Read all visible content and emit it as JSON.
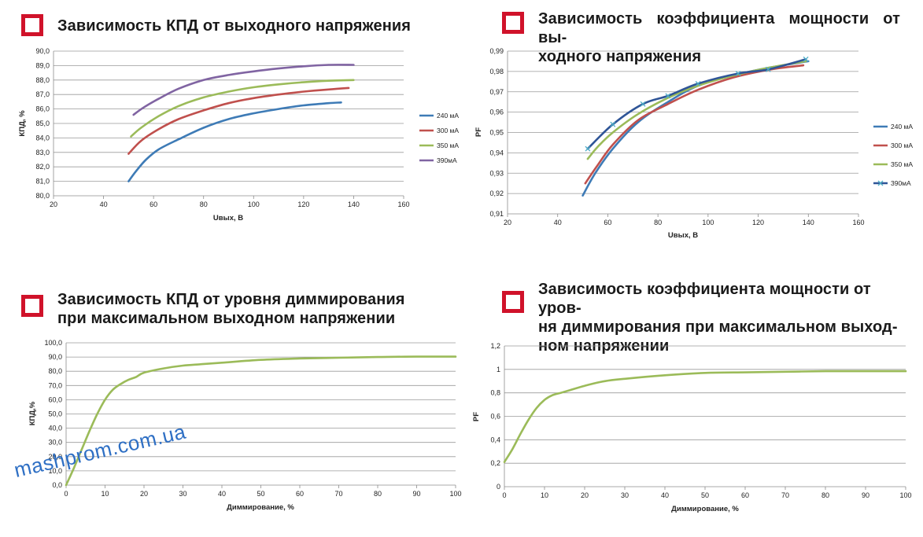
{
  "panels": [
    {
      "title": "Зависимость КПД от выходного напряжения"
    },
    {
      "title": "Зависимость коэффициента мощности от вы-ходного напряжения"
    },
    {
      "title": "Зависимость КПД от уровня диммирования при максимальном выходном напряжении"
    },
    {
      "title": "Зависимость коэффициента мощности от уров-ня диммирования при максимальном выход-ном напряжении"
    }
  ],
  "titles_lines": [
    [
      "Зависимость КПД от выходного напряжения"
    ],
    [
      "Зависимость коэффициента мощности от вы-",
      "ходного напряжения"
    ],
    [
      "Зависимость КПД от уровня диммирования",
      "при максимальном выходном напряжении"
    ],
    [
      "Зависимость коэффициента мощности от уров-",
      "ня диммирования при максимальном выход-",
      "ном напряжении"
    ]
  ],
  "watermark": "mashprom.com.ua",
  "chart_data": [
    {
      "type": "line",
      "title": "Зависимость КПД от выходного напряжения",
      "xlabel": "Uвых, В",
      "ylabel": "КПД, %",
      "xlim": [
        20,
        160
      ],
      "ylim": [
        80,
        90
      ],
      "xticks": [
        "20",
        "40",
        "60",
        "80",
        "100",
        "120",
        "140",
        "160"
      ],
      "yticks": [
        "80,0",
        "81,0",
        "82,0",
        "83,0",
        "84,0",
        "85,0",
        "86,0",
        "87,0",
        "88,0",
        "89,0",
        "90,0"
      ],
      "grid": true,
      "legend": "right",
      "series": [
        {
          "name": "240 мА",
          "color": "#3e7bb6",
          "x": [
            50,
            53,
            57,
            62,
            70,
            80,
            90,
            100,
            110,
            120,
            130,
            135
          ],
          "y": [
            81.0,
            81.7,
            82.5,
            83.2,
            83.9,
            84.7,
            85.3,
            85.7,
            86.0,
            86.25,
            86.4,
            86.45
          ]
        },
        {
          "name": "300 мА",
          "color": "#c0504d",
          "x": [
            50,
            55,
            62,
            70,
            80,
            90,
            100,
            110,
            120,
            130,
            138
          ],
          "y": [
            82.9,
            83.8,
            84.6,
            85.3,
            85.9,
            86.4,
            86.75,
            87.0,
            87.2,
            87.35,
            87.45
          ]
        },
        {
          "name": "350 мА",
          "color": "#9bbb59",
          "x": [
            51,
            55,
            62,
            70,
            80,
            90,
            100,
            110,
            120,
            130,
            140
          ],
          "y": [
            84.1,
            84.7,
            85.5,
            86.2,
            86.8,
            87.2,
            87.5,
            87.7,
            87.85,
            87.95,
            88.0
          ]
        },
        {
          "name": "390мА",
          "color": "#8064a2",
          "x": [
            52,
            56,
            62,
            70,
            80,
            90,
            100,
            110,
            120,
            130,
            140
          ],
          "y": [
            85.6,
            86.1,
            86.7,
            87.4,
            88.0,
            88.35,
            88.6,
            88.8,
            88.95,
            89.05,
            89.05
          ]
        }
      ]
    },
    {
      "type": "line",
      "title": "Зависимость коэффициента мощности от вы-ходного напряжения",
      "xlabel": "Uвых, В",
      "ylabel": "PF",
      "xlim": [
        20,
        160
      ],
      "ylim": [
        0.91,
        0.99
      ],
      "xticks": [
        "20",
        "40",
        "60",
        "80",
        "100",
        "120",
        "140",
        "160"
      ],
      "yticks": [
        "0,91",
        "0,92",
        "0,93",
        "0,94",
        "0,95",
        "0,96",
        "0,97",
        "0,98",
        "0,99"
      ],
      "grid": true,
      "legend": "right",
      "series": [
        {
          "name": "240 мА",
          "color": "#3e7bb6",
          "x": [
            50,
            55,
            62,
            72,
            84,
            96,
            110,
            125,
            140
          ],
          "y": [
            0.919,
            0.93,
            0.942,
            0.955,
            0.965,
            0.973,
            0.978,
            0.982,
            0.985
          ]
        },
        {
          "name": "300 мА",
          "color": "#c0504d",
          "x": [
            51,
            56,
            62,
            72,
            84,
            96,
            110,
            125,
            138
          ],
          "y": [
            0.925,
            0.934,
            0.944,
            0.956,
            0.964,
            0.971,
            0.977,
            0.981,
            0.983
          ]
        },
        {
          "name": "350 мА",
          "color": "#9bbb59",
          "x": [
            52,
            56,
            62,
            72,
            84,
            96,
            110,
            125,
            139
          ],
          "y": [
            0.937,
            0.943,
            0.95,
            0.959,
            0.967,
            0.973,
            0.978,
            0.982,
            0.985
          ]
        },
        {
          "name": "390мА",
          "color": "#2f5597",
          "x": [
            52,
            62,
            74,
            84,
            96,
            112,
            124,
            139
          ],
          "y": [
            0.942,
            0.954,
            0.964,
            0.968,
            0.974,
            0.979,
            0.981,
            0.986
          ]
        }
      ]
    },
    {
      "type": "line",
      "title": "Зависимость КПД от уровня диммирования при максимальном выходном напряжении",
      "xlabel": "Диммирование, %",
      "ylabel": "КПД,%",
      "xlim": [
        0,
        100
      ],
      "ylim": [
        0,
        100
      ],
      "xticks": [
        "0",
        "10",
        "20",
        "30",
        "40",
        "50",
        "60",
        "70",
        "80",
        "90",
        "100"
      ],
      "yticks": [
        "0,0",
        "10,0",
        "20,0",
        "30,0",
        "40,0",
        "50,0",
        "60,0",
        "70,0",
        "80,0",
        "90,0",
        "100,0"
      ],
      "grid": true,
      "series": [
        {
          "name": "",
          "color": "#9bbb59",
          "x": [
            0,
            2,
            4,
            6,
            8,
            10,
            12,
            14,
            16,
            18,
            20,
            25,
            30,
            35,
            40,
            50,
            60,
            70,
            80,
            90,
            100
          ],
          "y": [
            0,
            12,
            25,
            38,
            50,
            60,
            67,
            71,
            74,
            76,
            79,
            82,
            84,
            85,
            86,
            88,
            89,
            89.5,
            90,
            90.3,
            90.3
          ]
        }
      ]
    },
    {
      "type": "line",
      "title": "Зависимость коэффициента мощности от уровня диммирования при максимальном выходном напряжении",
      "xlabel": "Диммирование, %",
      "ylabel": "PF",
      "xlim": [
        0,
        100
      ],
      "ylim": [
        0,
        1.2
      ],
      "xticks": [
        "0",
        "10",
        "20",
        "30",
        "40",
        "50",
        "60",
        "70",
        "80",
        "90",
        "100"
      ],
      "yticks": [
        "0",
        "0,2",
        "0,4",
        "0,6",
        "0,8",
        "1",
        "1,2"
      ],
      "grid": true,
      "series": [
        {
          "name": "",
          "color": "#9bbb59",
          "x": [
            0,
            2,
            4,
            6,
            8,
            10,
            12,
            14,
            16,
            20,
            25,
            30,
            40,
            50,
            60,
            70,
            80,
            90,
            100
          ],
          "y": [
            0.21,
            0.32,
            0.45,
            0.57,
            0.67,
            0.74,
            0.78,
            0.8,
            0.82,
            0.86,
            0.9,
            0.92,
            0.95,
            0.97,
            0.975,
            0.98,
            0.985,
            0.985,
            0.985
          ]
        }
      ]
    }
  ]
}
